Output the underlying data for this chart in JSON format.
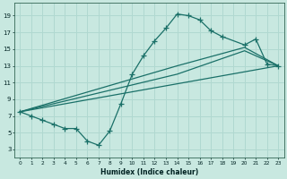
{
  "xlabel": "Humidex (Indice chaleur)",
  "xlim": [
    -0.5,
    23.5
  ],
  "ylim": [
    2,
    20.5
  ],
  "yticks": [
    3,
    5,
    7,
    9,
    11,
    13,
    15,
    17,
    19
  ],
  "xticks": [
    0,
    1,
    2,
    3,
    4,
    5,
    6,
    7,
    8,
    9,
    10,
    11,
    12,
    13,
    14,
    15,
    16,
    17,
    18,
    19,
    20,
    21,
    22,
    23
  ],
  "background_color": "#c8e8e0",
  "grid_color": "#b0d8d0",
  "line_color": "#1a7068",
  "line1_x": [
    0,
    1,
    2,
    3,
    4,
    5,
    6,
    7,
    8,
    9,
    10,
    11,
    12,
    13,
    14,
    15,
    16,
    17,
    18,
    20,
    21,
    22,
    23
  ],
  "line1_y": [
    7.5,
    7.0,
    6.5,
    6.0,
    5.5,
    5.5,
    4.0,
    3.5,
    5.2,
    8.5,
    12.0,
    14.2,
    16.0,
    17.5,
    19.2,
    19.0,
    18.5,
    17.2,
    16.5,
    15.5,
    16.2,
    13.2,
    13.0
  ],
  "line2_x": [
    0,
    23
  ],
  "line2_y": [
    7.5,
    13.0
  ],
  "line3_x": [
    0,
    14,
    20,
    23
  ],
  "line3_y": [
    7.5,
    13.0,
    15.2,
    13.0
  ],
  "line4_x": [
    0,
    14,
    20,
    23
  ],
  "line4_y": [
    7.5,
    12.0,
    14.8,
    13.0
  ]
}
